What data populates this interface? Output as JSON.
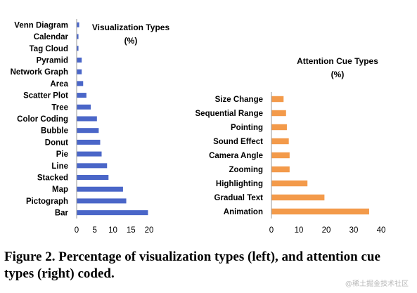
{
  "chart_data": [
    {
      "type": "bar",
      "orientation": "horizontal",
      "title_line1": "Visualization Types",
      "title_line2": "(%)",
      "color": "#4a66c8",
      "categories": [
        "Venn Diagram",
        "Calendar",
        "Tag Cloud",
        "Pyramid",
        "Network Graph",
        "Area",
        "Scatter Plot",
        "Tree",
        "Color Coding",
        "Bubble",
        "Donut",
        "Pie",
        "Line",
        "Stacked",
        "Map",
        "Pictograph",
        "Bar"
      ],
      "values": [
        0.6,
        0.4,
        0.4,
        1.3,
        1.3,
        1.7,
        2.6,
        3.8,
        5.5,
        6.0,
        6.4,
        6.8,
        8.3,
        8.7,
        12.7,
        13.6,
        19.6
      ],
      "xlim": [
        0,
        20
      ],
      "xticks": [
        "0",
        "5",
        "10",
        "15",
        "20"
      ],
      "grid": false
    },
    {
      "type": "bar",
      "orientation": "horizontal",
      "title_line1": "Attention Cue Types",
      "title_line2": "(%)",
      "color": "#f39a4a",
      "categories": [
        "Size Change",
        "Sequential Range",
        "Pointing",
        "Sound Effect",
        "Camera Angle",
        "Zooming",
        "Highlighting",
        "Gradual Text",
        "Animation"
      ],
      "values": [
        4.3,
        5.2,
        5.5,
        6.2,
        6.5,
        6.5,
        13.0,
        19.2,
        35.5
      ],
      "xlim": [
        0,
        40
      ],
      "xticks": [
        "0",
        "10",
        "20",
        "30",
        "40"
      ],
      "grid": false
    }
  ],
  "caption": "Figure 2. Percentage of visualization types (left), and attention cue types (right) coded.",
  "watermark": "@稀土掘金技术社区"
}
